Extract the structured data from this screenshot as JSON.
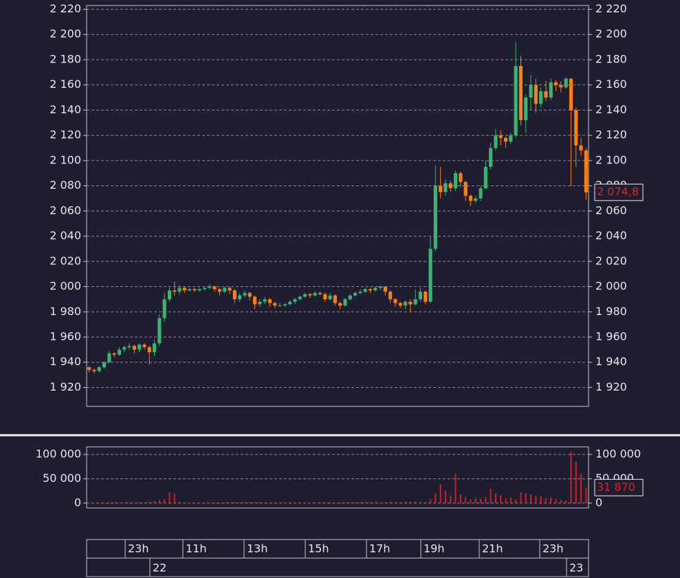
{
  "chart_data": [
    {
      "type": "candlestick",
      "up_color": "#3cb371",
      "down_color": "#ff7f0e",
      "grid": true,
      "ylim": [
        1905,
        2223
      ],
      "yticks": [
        {
          "value": 2220,
          "label": "2 220"
        },
        {
          "value": 2200,
          "label": "2 200"
        },
        {
          "value": 2180,
          "label": "2 180"
        },
        {
          "value": 2160,
          "label": "2 160"
        },
        {
          "value": 2140,
          "label": "2 140"
        },
        {
          "value": 2120,
          "label": "2 120"
        },
        {
          "value": 2100,
          "label": "2 100"
        },
        {
          "value": 2080,
          "label": "2 080"
        },
        {
          "value": 2060,
          "label": "2 060"
        },
        {
          "value": 2040,
          "label": "2 040"
        },
        {
          "value": 2020,
          "label": "2 020"
        },
        {
          "value": 2000,
          "label": "2 000"
        },
        {
          "value": 1980,
          "label": "1 980"
        },
        {
          "value": 1960,
          "label": "1 960"
        },
        {
          "value": 1940,
          "label": "1 940"
        },
        {
          "value": 1920,
          "label": "1 920"
        }
      ],
      "open": [
        1936,
        1934,
        1933,
        1936,
        1940,
        1947,
        1946,
        1950,
        1952,
        1953,
        1950,
        1954,
        1952,
        1948,
        1955,
        1975,
        1990,
        1997,
        1996,
        1999,
        1997,
        1998,
        1997,
        1998,
        1999,
        2000,
        1998,
        1996,
        1999,
        1997,
        1990,
        1993,
        1995,
        1992,
        1986,
        1988,
        1990,
        1987,
        1985,
        1985,
        1986,
        1988,
        1990,
        1992,
        1994,
        1993,
        1995,
        1994,
        1990,
        1993,
        1987,
        1985,
        1990,
        1993,
        1995,
        1996,
        1998,
        1997,
        1999,
        2000,
        1996,
        1990,
        1987,
        1985,
        1988,
        1986,
        1990,
        1996,
        1988,
        2030,
        2080,
        2075,
        2082,
        2078,
        2090,
        2083,
        2072,
        2068,
        2070,
        2078,
        2095,
        2110,
        2120,
        2118,
        2115,
        2120,
        2175,
        2132,
        2150,
        2160,
        2145,
        2155,
        2150,
        2162,
        2160,
        2158,
        2165,
        2140,
        2112,
        2108
      ],
      "high": [
        1937,
        1935,
        1937,
        1941,
        1949,
        1948,
        1952,
        1953,
        1955,
        1954,
        1955,
        1955,
        1953,
        1958,
        1978,
        1995,
        1999,
        2004,
        2001,
        2000,
        1999,
        1999,
        1999,
        2000,
        2002,
        2001,
        1999,
        2000,
        2000,
        1998,
        1995,
        1997,
        1996,
        1993,
        1990,
        1992,
        1991,
        1988,
        1987,
        1987,
        1989,
        1991,
        1993,
        1995,
        1995,
        1996,
        1996,
        1995,
        1995,
        1994,
        1988,
        1991,
        1994,
        1996,
        1998,
        1999,
        1999,
        2000,
        2001,
        2000,
        1997,
        1991,
        1988,
        1989,
        1990,
        1998,
        1999,
        1997,
        2040,
        2096,
        2095,
        2085,
        2084,
        2092,
        2091,
        2084,
        2073,
        2072,
        2080,
        2100,
        2114,
        2125,
        2124,
        2119,
        2122,
        2194,
        2183,
        2152,
        2168,
        2165,
        2158,
        2163,
        2165,
        2164,
        2163,
        2166,
        2165,
        2142,
        2118,
        2110
      ],
      "low": [
        1932,
        1931,
        1932,
        1935,
        1939,
        1944,
        1945,
        1948,
        1950,
        1947,
        1948,
        1950,
        1938,
        1945,
        1953,
        1972,
        1988,
        1993,
        1994,
        1995,
        1996,
        1996,
        1996,
        1997,
        1998,
        1996,
        1993,
        1995,
        1994,
        1987,
        1988,
        1991,
        1989,
        1982,
        1984,
        1986,
        1984,
        1983,
        1984,
        1984,
        1985,
        1986,
        1989,
        1991,
        1991,
        1992,
        1993,
        1988,
        1989,
        1985,
        1982,
        1984,
        1989,
        1992,
        1994,
        1995,
        1995,
        1996,
        1997,
        1993,
        1987,
        1984,
        1983,
        1982,
        1980,
        1985,
        1988,
        1986,
        1987,
        2028,
        2070,
        2072,
        2075,
        2076,
        2079,
        2068,
        2064,
        2066,
        2068,
        2077,
        2093,
        2108,
        2112,
        2110,
        2113,
        2118,
        2128,
        2122,
        2140,
        2138,
        2142,
        2147,
        2148,
        2155,
        2154,
        2157,
        2080,
        2095,
        2104,
        2069
      ],
      "close": [
        1934,
        1933,
        1936,
        1940,
        1947,
        1946,
        1950,
        1952,
        1953,
        1950,
        1954,
        1952,
        1948,
        1955,
        1975,
        1990,
        1997,
        1996,
        1999,
        1997,
        1998,
        1997,
        1998,
        1999,
        2000,
        1998,
        1996,
        1999,
        1997,
        1990,
        1993,
        1995,
        1992,
        1986,
        1988,
        1990,
        1987,
        1985,
        1985,
        1986,
        1988,
        1990,
        1992,
        1994,
        1993,
        1995,
        1994,
        1990,
        1993,
        1987,
        1985,
        1990,
        1993,
        1995,
        1996,
        1998,
        1997,
        1999,
        2000,
        1996,
        1990,
        1987,
        1985,
        1988,
        1986,
        1990,
        1996,
        1988,
        2030,
        2080,
        2075,
        2082,
        2078,
        2090,
        2083,
        2072,
        2068,
        2070,
        2078,
        2095,
        2110,
        2120,
        2118,
        2115,
        2120,
        2175,
        2132,
        2150,
        2160,
        2145,
        2155,
        2150,
        2162,
        2160,
        2158,
        2165,
        2140,
        2112,
        2108,
        2074.8
      ],
      "last_label": "2 074,8"
    },
    {
      "type": "bar",
      "color": "#d42020",
      "grid": true,
      "ylim": [
        -10000,
        115500
      ],
      "yticks": [
        {
          "value": 100000,
          "label": "100 000"
        },
        {
          "value": 50000,
          "label": "50 000"
        },
        0
      ],
      "values": [
        800,
        700,
        900,
        1000,
        1200,
        900,
        800,
        1000,
        900,
        800,
        1200,
        1100,
        3000,
        4000,
        6000,
        8000,
        22000,
        20000,
        3000,
        1000,
        900,
        800,
        1000,
        1200,
        900,
        1100,
        1500,
        1300,
        1000,
        2000,
        1500,
        1200,
        1800,
        2500,
        1600,
        1400,
        1300,
        1200,
        1100,
        1000,
        1200,
        1300,
        1400,
        1100,
        1000,
        1500,
        1800,
        2200,
        1600,
        1400,
        1200,
        1300,
        1500,
        1700,
        1600,
        1800,
        2000,
        1500,
        1400,
        2500,
        2800,
        2200,
        2000,
        2400,
        2600,
        3000,
        2800,
        2200,
        8000,
        20000,
        38000,
        25000,
        15000,
        60000,
        18000,
        12000,
        8000,
        10000,
        9000,
        12000,
        30000,
        20000,
        16000,
        10000,
        12000,
        8000,
        22000,
        20000,
        18000,
        15000,
        14000,
        10000,
        12000,
        8000,
        6000,
        5000,
        105000,
        85000,
        60000,
        31870
      ],
      "last_label": "31 870"
    }
  ],
  "time_axis": {
    "hours": [
      "23h",
      "11h",
      "13h",
      "15h",
      "17h",
      "19h",
      "21h",
      "23h"
    ],
    "days": [
      "22",
      "23"
    ]
  }
}
